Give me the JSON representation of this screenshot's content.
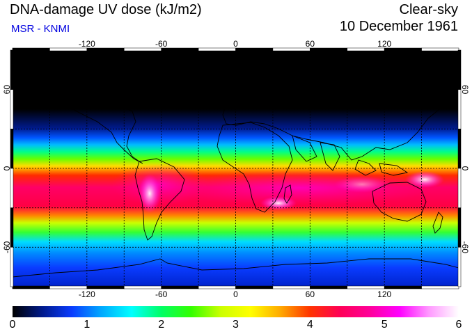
{
  "header": {
    "title": "DNA-damage UV dose (kJ/m2)",
    "source": "MSR - KNMI",
    "mode": "Clear-sky",
    "date": "10 December 1961"
  },
  "map": {
    "lon_ticks": [
      "-120",
      "-60",
      "0",
      "60",
      "120"
    ],
    "lat_ticks_left": [
      "60",
      "0",
      "-60"
    ],
    "lat_ticks_right": [
      "60",
      "0",
      "-60"
    ],
    "lon_values": [
      -120,
      -60,
      0,
      60,
      120
    ],
    "lat_values": [
      60,
      0,
      -60
    ],
    "grid_lon_step": 30,
    "grid_lat_step": 30
  },
  "colorbar": {
    "labels": [
      "0",
      "1",
      "2",
      "3",
      "4",
      "5",
      "6"
    ],
    "min": 0,
    "max": 6,
    "stops": [
      "#000000",
      "#001a8c",
      "#0a3cff",
      "#00aaff",
      "#00ffff",
      "#00ff66",
      "#33ff00",
      "#ccff00",
      "#ffff00",
      "#ffaa00",
      "#ff3300",
      "#ff0055",
      "#ff0099",
      "#ff00ff",
      "#ff99ff",
      "#ffffff"
    ]
  },
  "colors": {
    "grid": "#000000",
    "text": "#000000",
    "accent": "#0000e0"
  }
}
